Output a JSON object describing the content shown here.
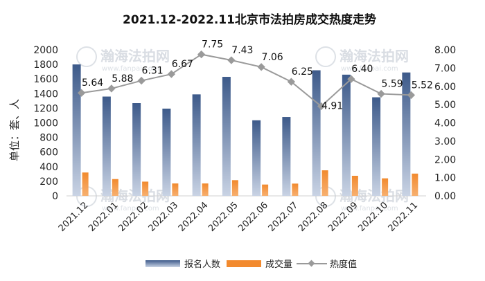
{
  "chart_data": {
    "type": "bar",
    "title": "2021.12-2022.11北京市法拍房成交热度走势",
    "ylabel": "单位：套、人",
    "categories": [
      "2021.12",
      "2022.01",
      "2022.02",
      "2022.03",
      "2022.04",
      "2022.05",
      "2022.06",
      "2022.07",
      "2022.08",
      "2022.09",
      "2022.10",
      "2022.11"
    ],
    "ylim": [
      0,
      2000
    ],
    "y2lim": [
      0,
      8
    ],
    "y_ticks": [
      "0",
      "200",
      "400",
      "600",
      "800",
      "1000",
      "1200",
      "1400",
      "1600",
      "1800",
      "2000"
    ],
    "y2_ticks": [
      "0.00",
      "1.00",
      "2.00",
      "3.00",
      "4.00",
      "5.00",
      "6.00",
      "7.00",
      "8.00"
    ],
    "series": [
      {
        "name": "报名人数",
        "type": "bar",
        "axis": "left",
        "color": "#3d5a8a",
        "values": [
          1800,
          1360,
          1270,
          1195,
          1390,
          1630,
          1035,
          1080,
          1720,
          1660,
          1350,
          1690
        ]
      },
      {
        "name": "成交量",
        "type": "bar",
        "axis": "left",
        "color": "#f28a2e",
        "values": [
          320,
          230,
          195,
          170,
          170,
          215,
          155,
          168,
          350,
          275,
          240,
          305
        ]
      },
      {
        "name": "热度值",
        "type": "line",
        "axis": "right",
        "color": "#9a9a9a",
        "values": [
          5.64,
          5.88,
          6.31,
          6.67,
          7.75,
          7.43,
          7.06,
          6.25,
          4.91,
          6.4,
          5.59,
          5.52
        ],
        "labels": [
          "5.64",
          "5.88",
          "6.31",
          "6.67",
          "7.75",
          "7.43",
          "7.06",
          "6.25",
          "4.91",
          "6.40",
          "5.59",
          "5.52"
        ]
      }
    ],
    "legend_position": "bottom",
    "grid": false,
    "watermark_text": "瀚海法拍网",
    "watermark_url": "www.fanpai.com"
  }
}
